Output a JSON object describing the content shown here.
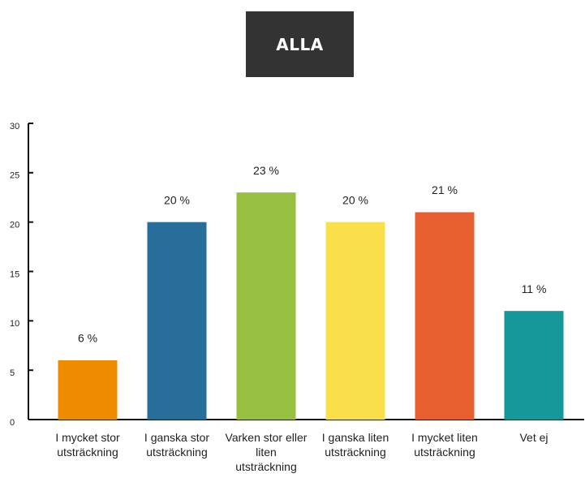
{
  "filter_button": "ALLA",
  "chart_data": {
    "type": "bar",
    "categories": [
      "I mycket stor utsträckning",
      "I ganska stor utsträckning",
      "Varken stor eller liten utsträckning",
      "I ganska liten utsträckning",
      "I mycket liten utsträckning",
      "Vet ej"
    ],
    "values": [
      6,
      20,
      23,
      20,
      21,
      11
    ],
    "value_labels": [
      "6 %",
      "20 %",
      "23 %",
      "20 %",
      "21 %",
      "11 %"
    ],
    "colors": [
      "#ee8c00",
      "#286e9a",
      "#97c040",
      "#f9e04a",
      "#e85f2f",
      "#16989a"
    ],
    "ylim": [
      0,
      30
    ],
    "yticks": [
      0,
      5,
      10,
      15,
      20,
      25,
      30
    ],
    "grid": false
  }
}
